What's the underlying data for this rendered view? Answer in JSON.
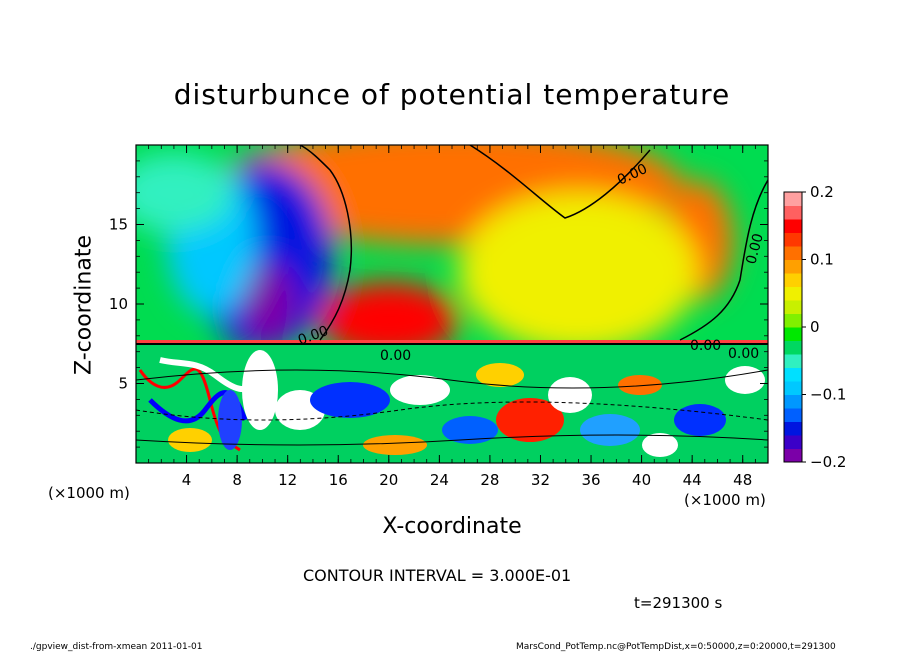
{
  "chart_data": {
    "type": "heatmap",
    "title": "disturbunce of potential temperature",
    "xlabel": "X-coordinate",
    "ylabel": "Z-coordinate",
    "x_unit": "(×1000 m)",
    "xlim": [
      0,
      50
    ],
    "ylim": [
      0,
      20
    ],
    "x_ticks": [
      4,
      8,
      12,
      16,
      20,
      24,
      28,
      32,
      36,
      40,
      44,
      48
    ],
    "y_ticks": [
      5,
      10,
      15
    ],
    "colorbar": {
      "range": [
        -0.2,
        0.2
      ],
      "ticks": [
        {
          "value": 0.2,
          "label": "0.2"
        },
        {
          "value": 0.1,
          "label": "0.1"
        },
        {
          "value": 0.0,
          "label": "0"
        },
        {
          "value": -0.1,
          "label": "−0.1"
        },
        {
          "value": -0.2,
          "label": "−0.2"
        }
      ],
      "colors": [
        "#7b00a8",
        "#3b00c8",
        "#0015e0",
        "#0060ff",
        "#0098ff",
        "#00c8ff",
        "#00e0ff",
        "#30f0c0",
        "#00d860",
        "#00e800",
        "#80f000",
        "#c8f000",
        "#f0f000",
        "#ffd000",
        "#ffa000",
        "#ff7000",
        "#ff3800",
        "#ff0000",
        "#ff6060",
        "#ffa0a0"
      ]
    },
    "contour_labels": [
      "0.00",
      "0.00",
      "0.00",
      "0.00",
      "0.00",
      "0.00"
    ],
    "regions": [
      {
        "x": 25,
        "z": 17.5,
        "value": 0.1
      },
      {
        "x": 10,
        "z": 13,
        "value": -0.15
      },
      {
        "x": 10.5,
        "z": 10,
        "value": -0.2
      },
      {
        "x": 20,
        "z": 9,
        "value": 0.15
      },
      {
        "x": 44.5,
        "z": 14,
        "value": 0.1
      },
      {
        "x": 6,
        "z": 14,
        "value": -0.1
      },
      {
        "x": 35,
        "z": 12,
        "value": 0.05
      },
      {
        "x": 3,
        "z": 17,
        "value": -0.05
      }
    ]
  },
  "annotations": {
    "contour_interval": "CONTOUR INTERVAL = 3.000E-01",
    "time": "t=291300 s",
    "footer_left": "./gpview_dist-from-xmean  2011-01-01",
    "footer_right": "MarsCond_PotTemp.nc@PotTempDist,x=0:50000,z=0:20000,t=291300"
  }
}
